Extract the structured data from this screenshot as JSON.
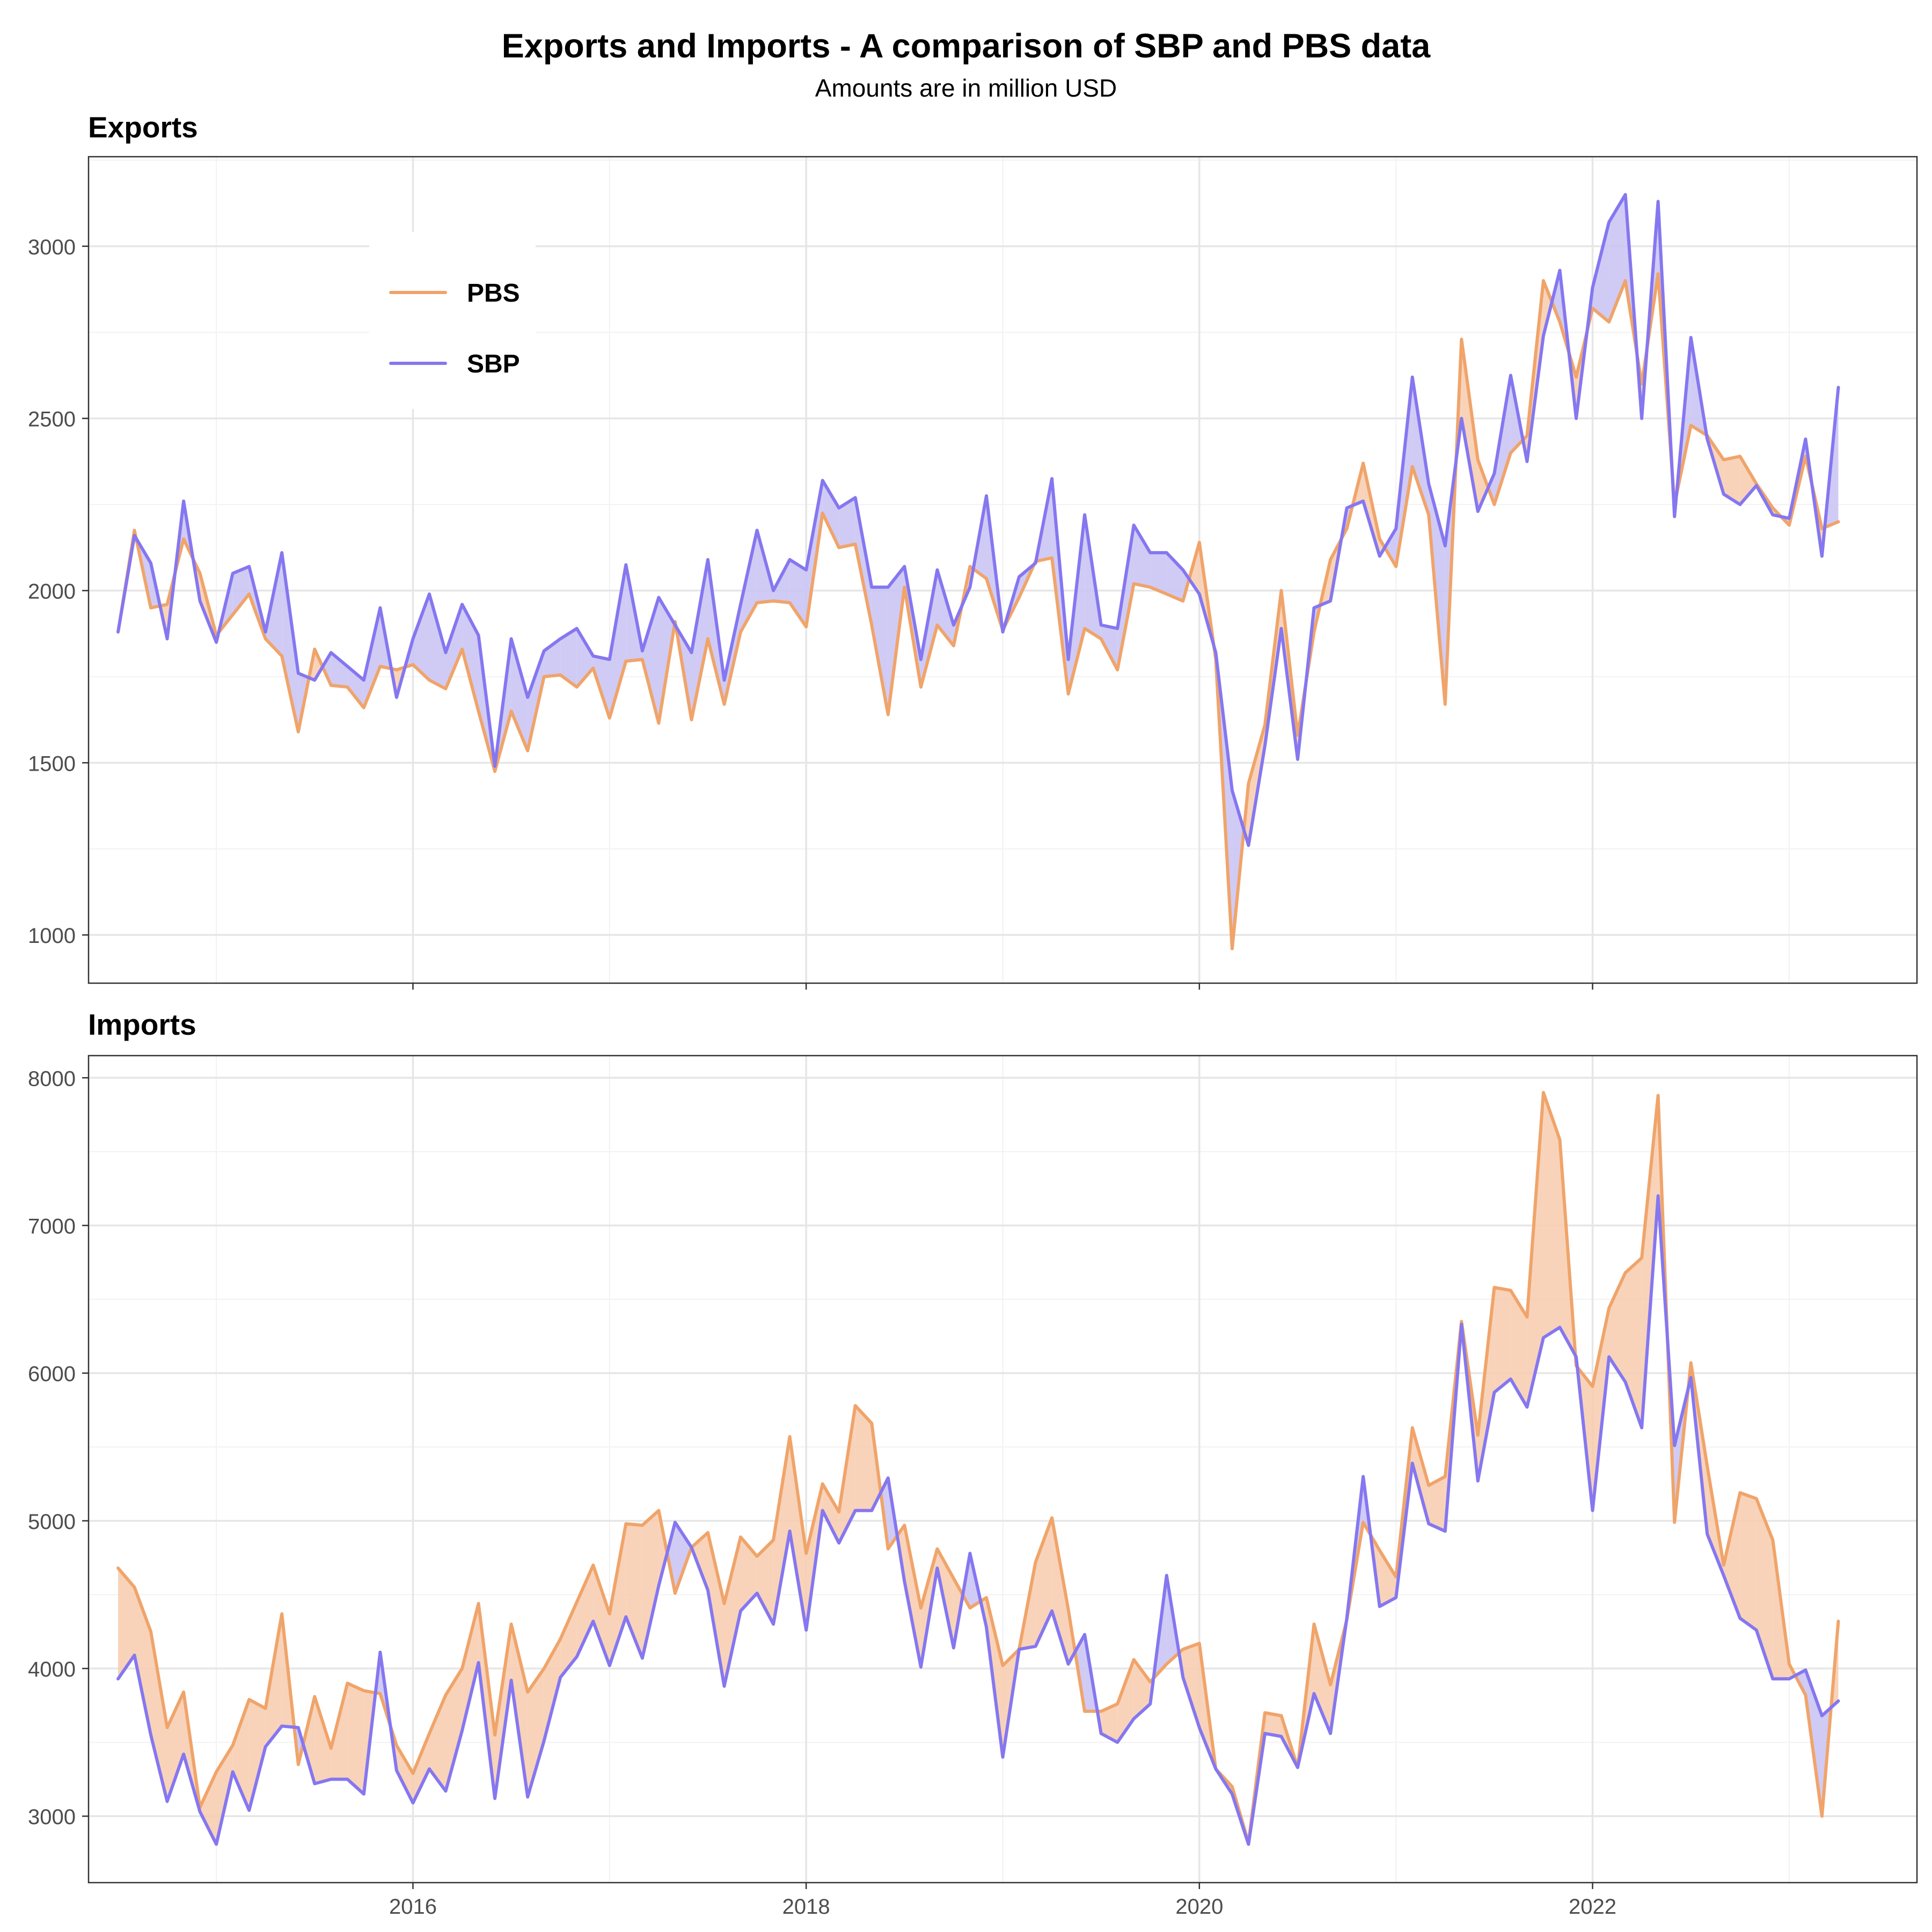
{
  "title": "Exports and Imports - A comparison of SBP and PBS data",
  "subtitle": "Amounts are in million USD",
  "colors": {
    "PBS": "#F0A46A",
    "SBP": "#8577F0",
    "fill_PBS_above": "#F7CBAE",
    "fill_SBP_above": "#C8C2F3"
  },
  "chart_data": [
    {
      "type": "line",
      "panel_title": "Exports",
      "x_start": "2014-07",
      "x_step": "1 month",
      "xlim": [
        2014.35,
        2023.65
      ],
      "ylim": [
        860,
        3260
      ],
      "yticks": [
        1000,
        1500,
        2000,
        2500,
        3000
      ],
      "xticks": [
        2016,
        2018,
        2020,
        2022
      ],
      "grid": true,
      "legend": "top-left",
      "series": [
        {
          "name": "PBS",
          "values": [
            1880,
            2175,
            1950,
            1960,
            2150,
            2050,
            1870,
            1930,
            1990,
            1860,
            1810,
            1590,
            1830,
            1725,
            1720,
            1660,
            1780,
            1770,
            1785,
            1740,
            1715,
            1830,
            1650,
            1475,
            1650,
            1535,
            1750,
            1755,
            1720,
            1775,
            1630,
            1795,
            1800,
            1615,
            1910,
            1625,
            1860,
            1670,
            1880,
            1965,
            1970,
            1965,
            1895,
            2225,
            2125,
            2135,
            1900,
            1640,
            2010,
            1720,
            1900,
            1840,
            2070,
            2035,
            1885,
            1980,
            2085,
            2095,
            1700,
            1890,
            1860,
            1770,
            2020,
            2010,
            1990,
            1970,
            2140,
            1800,
            960,
            1440,
            1610,
            2000,
            1580,
            1880,
            2090,
            2180,
            2370,
            2150,
            2070,
            2360,
            2220,
            1670,
            2730,
            2380,
            2250,
            2400,
            2450,
            2900,
            2780,
            2620,
            2820,
            2780,
            2900,
            2600,
            2920,
            2250,
            2480,
            2450,
            2380,
            2390,
            2310,
            2240,
            2190,
            2390,
            2180,
            2200
          ]
        },
        {
          "name": "SBP",
          "values": [
            1880,
            2160,
            2080,
            1860,
            2260,
            1970,
            1850,
            2050,
            2070,
            1880,
            2110,
            1760,
            1740,
            1820,
            1780,
            1740,
            1950,
            1690,
            1860,
            1990,
            1820,
            1960,
            1870,
            1490,
            1860,
            1690,
            1825,
            1860,
            1890,
            1810,
            1800,
            2075,
            1825,
            1980,
            1900,
            1820,
            2090,
            1740,
            1960,
            2175,
            2000,
            2090,
            2060,
            2320,
            2240,
            2270,
            2010,
            2010,
            2070,
            1800,
            2060,
            1900,
            2010,
            2275,
            1880,
            2040,
            2080,
            2325,
            1800,
            2220,
            1900,
            1890,
            2190,
            2110,
            2110,
            2060,
            1990,
            1820,
            1420,
            1260,
            1550,
            1890,
            1510,
            1950,
            1970,
            2240,
            2260,
            2100,
            2180,
            2620,
            2310,
            2130,
            2500,
            2230,
            2340,
            2625,
            2375,
            2740,
            2930,
            2500,
            2880,
            3070,
            3150,
            2500,
            3130,
            2215,
            2735,
            2440,
            2280,
            2250,
            2305,
            2220,
            2210,
            2440,
            2100,
            2590
          ]
        }
      ]
    },
    {
      "type": "line",
      "panel_title": "Imports",
      "x_start": "2014-07",
      "x_step": "1 month",
      "xlim": [
        2014.35,
        2023.65
      ],
      "ylim": [
        2550,
        8150
      ],
      "yticks": [
        3000,
        4000,
        5000,
        6000,
        7000,
        8000
      ],
      "xticks": [
        2016,
        2018,
        2020,
        2022
      ],
      "xticklabels": [
        "2016",
        "2018",
        "2020",
        "2022"
      ],
      "grid": true,
      "series": [
        {
          "name": "PBS",
          "values": [
            4680,
            4550,
            4250,
            3600,
            3840,
            3060,
            3300,
            3480,
            3790,
            3730,
            4370,
            3350,
            3810,
            3460,
            3900,
            3850,
            3830,
            3480,
            3290,
            3560,
            3820,
            4000,
            4440,
            3550,
            4300,
            3840,
            4000,
            4200,
            4450,
            4700,
            4370,
            4980,
            4970,
            5070,
            4510,
            4820,
            4920,
            4440,
            4890,
            4760,
            4870,
            5570,
            4780,
            5250,
            5060,
            5780,
            5660,
            4810,
            4970,
            4410,
            4810,
            4610,
            4410,
            4480,
            4020,
            4130,
            4720,
            5020,
            4400,
            3710,
            3710,
            3760,
            4060,
            3910,
            4030,
            4130,
            4170,
            3320,
            3200,
            2820,
            3700,
            3680,
            3330,
            4300,
            3890,
            4330,
            4990,
            4800,
            4620,
            5630,
            5240,
            5300,
            6350,
            5580,
            6580,
            6560,
            6380,
            7900,
            7580,
            6050,
            5910,
            6440,
            6680,
            6780,
            7880,
            4990,
            6070,
            5370,
            4700,
            5190,
            5150,
            4870,
            4030,
            3820,
            3000,
            4320
          ]
        },
        {
          "name": "SBP",
          "values": [
            3930,
            4090,
            3550,
            3100,
            3420,
            3030,
            2810,
            3300,
            3040,
            3470,
            3610,
            3600,
            3220,
            3250,
            3250,
            3150,
            4110,
            3310,
            3090,
            3320,
            3170,
            3580,
            4040,
            3120,
            3920,
            3130,
            3510,
            3940,
            4080,
            4320,
            4020,
            4350,
            4070,
            4560,
            4990,
            4820,
            4530,
            3880,
            4390,
            4510,
            4300,
            4930,
            4260,
            5070,
            4850,
            5070,
            5070,
            5290,
            4590,
            4010,
            4680,
            4140,
            4780,
            4280,
            3400,
            4130,
            4150,
            4390,
            4030,
            4230,
            3560,
            3500,
            3660,
            3760,
            4630,
            3940,
            3600,
            3320,
            3150,
            2810,
            3560,
            3540,
            3330,
            3830,
            3560,
            4340,
            5300,
            4420,
            4480,
            5390,
            4980,
            4930,
            6330,
            5270,
            5870,
            5960,
            5770,
            6240,
            6310,
            6110,
            5070,
            6110,
            5940,
            5630,
            7200,
            5510,
            5970,
            4910,
            4630,
            4340,
            4260,
            3930,
            3930,
            3990,
            3680,
            3780
          ]
        }
      ]
    }
  ]
}
